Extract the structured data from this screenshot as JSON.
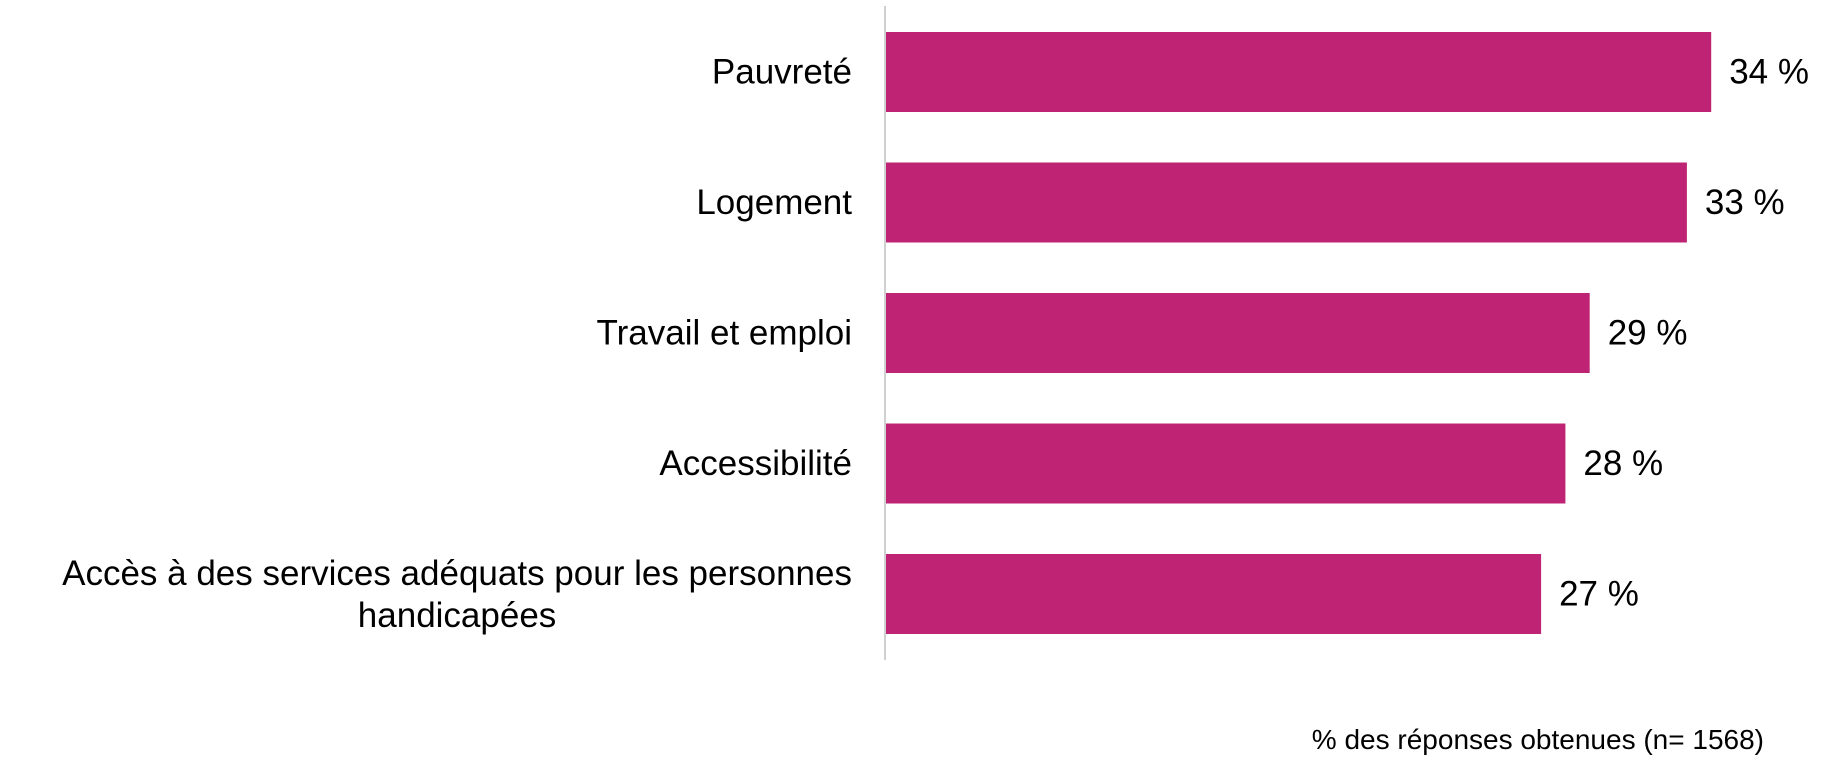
{
  "chart_data": {
    "type": "bar",
    "orientation": "horizontal",
    "categories": [
      [
        "Pauvreté"
      ],
      [
        "Logement"
      ],
      [
        "Travail et emploi"
      ],
      [
        "Accessibilité"
      ],
      [
        "Accès à des services adéquats pour les personnes",
        "handicapées"
      ]
    ],
    "values": [
      34,
      33,
      29,
      28,
      27
    ],
    "value_labels": [
      "34 %",
      "33 %",
      "29 %",
      "28 %",
      "27 %"
    ],
    "title": "",
    "xlabel": "% des réponses obtenues (n= 1568)",
    "ylabel": "",
    "xlim": [
      0,
      36
    ],
    "grid": false,
    "legend": "none",
    "bar_color": "#BE2473",
    "axis_color": "#D0D0D0"
  }
}
